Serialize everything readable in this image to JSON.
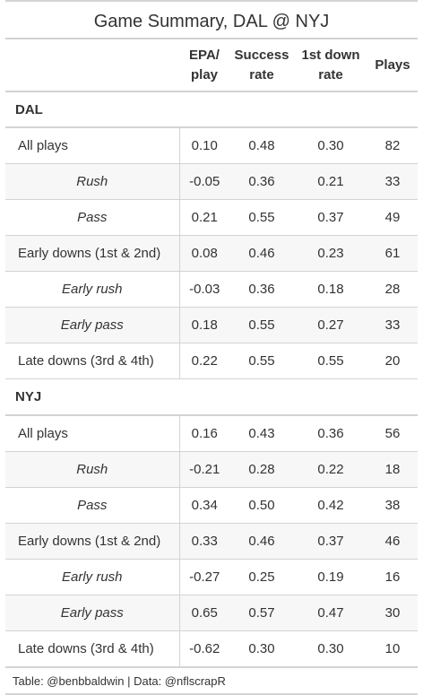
{
  "title": "Game Summary, DAL @ NYJ",
  "columns": [
    "",
    "EPA/\nplay",
    "Success\nrate",
    "1st down\nrate",
    "Plays"
  ],
  "column_lines": [
    [],
    [
      "EPA/",
      "play"
    ],
    [
      "Success",
      "rate"
    ],
    [
      "1st down",
      "rate"
    ],
    [
      "Plays"
    ]
  ],
  "groups": [
    {
      "name": "DAL",
      "rows": [
        {
          "label": "All plays",
          "style": "main",
          "epa": "0.10",
          "success": "0.48",
          "first_down": "0.30",
          "plays": "82"
        },
        {
          "label": "Rush",
          "style": "sub",
          "epa": "-0.05",
          "success": "0.36",
          "first_down": "0.21",
          "plays": "33"
        },
        {
          "label": "Pass",
          "style": "sub",
          "epa": "0.21",
          "success": "0.55",
          "first_down": "0.37",
          "plays": "49"
        },
        {
          "label": "Early downs (1st & 2nd)",
          "style": "main",
          "epa": "0.08",
          "success": "0.46",
          "first_down": "0.23",
          "plays": "61"
        },
        {
          "label": "Early rush",
          "style": "sub",
          "epa": "-0.03",
          "success": "0.36",
          "first_down": "0.18",
          "plays": "28"
        },
        {
          "label": "Early pass",
          "style": "sub",
          "epa": "0.18",
          "success": "0.55",
          "first_down": "0.27",
          "plays": "33"
        },
        {
          "label": "Late downs (3rd & 4th)",
          "style": "main",
          "epa": "0.22",
          "success": "0.55",
          "first_down": "0.55",
          "plays": "20"
        }
      ]
    },
    {
      "name": "NYJ",
      "rows": [
        {
          "label": "All plays",
          "style": "main",
          "epa": "0.16",
          "success": "0.43",
          "first_down": "0.36",
          "plays": "56"
        },
        {
          "label": "Rush",
          "style": "sub",
          "epa": "-0.21",
          "success": "0.28",
          "first_down": "0.22",
          "plays": "18"
        },
        {
          "label": "Pass",
          "style": "sub",
          "epa": "0.34",
          "success": "0.50",
          "first_down": "0.42",
          "plays": "38"
        },
        {
          "label": "Early downs (1st & 2nd)",
          "style": "main",
          "epa": "0.33",
          "success": "0.46",
          "first_down": "0.37",
          "plays": "46"
        },
        {
          "label": "Early rush",
          "style": "sub",
          "epa": "-0.27",
          "success": "0.25",
          "first_down": "0.19",
          "plays": "16"
        },
        {
          "label": "Early pass",
          "style": "sub",
          "epa": "0.65",
          "success": "0.57",
          "first_down": "0.47",
          "plays": "30"
        },
        {
          "label": "Late downs (3rd & 4th)",
          "style": "main",
          "epa": "-0.62",
          "success": "0.30",
          "first_down": "0.30",
          "plays": "10"
        }
      ]
    }
  ],
  "footer": "Table: @benbbaldwin | Data: @nflscrapR",
  "colors": {
    "border": "#d3d3d3",
    "text": "#333333",
    "stripe": "#f7f7f7"
  }
}
